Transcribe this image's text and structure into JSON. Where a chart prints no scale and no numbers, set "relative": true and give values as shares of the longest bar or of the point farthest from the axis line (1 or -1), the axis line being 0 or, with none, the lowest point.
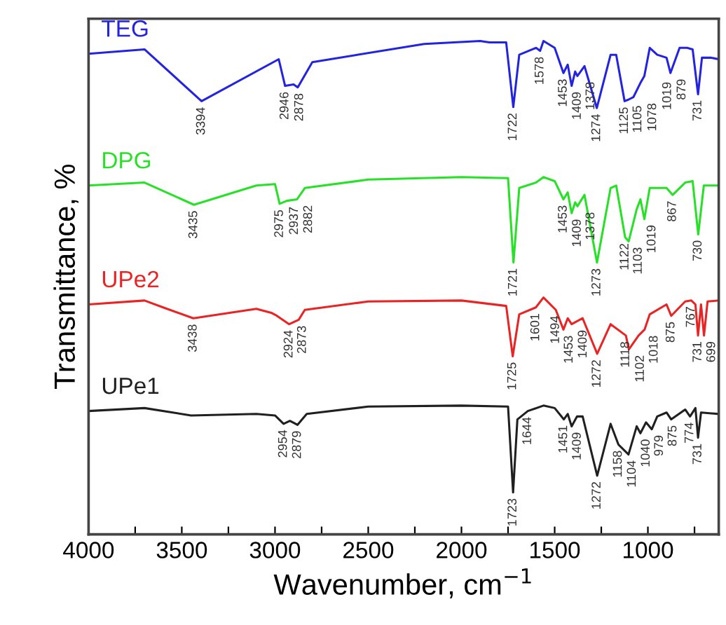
{
  "chart_data": {
    "type": "line",
    "relative": true,
    "xlabel": "Wavenumber, cm$^{−1}$",
    "ylabel": "Transmittance, %",
    "xlim": [
      4000,
      620
    ],
    "xticks": [
      4000,
      {
        "value": 3750,
        "label": null
      },
      3500,
      {
        "value": 3250,
        "label": null
      },
      3000,
      {
        "value": 2750,
        "label": null
      },
      2500,
      {
        "value": 2250,
        "label": null
      },
      2000,
      {
        "value": 1750,
        "label": null
      },
      1500,
      {
        "value": 1250,
        "label": null
      },
      1000,
      {
        "value": 750,
        "label": null
      }
    ],
    "grid": false,
    "legend": false,
    "marker": "none",
    "line_style": "solid",
    "series": [
      {
        "name": "TEG",
        "color": "#2424e0",
        "x": [
          4000,
          3700,
          3394,
          2980,
          2946,
          2900,
          2878,
          2800,
          2200,
          1900,
          1850,
          1760,
          1722,
          1690,
          1600,
          1578,
          1560,
          1500,
          1453,
          1430,
          1409,
          1390,
          1378,
          1340,
          1274,
          1200,
          1170,
          1125,
          1105,
          1078,
          1040,
          1019,
          990,
          950,
          900,
          879,
          830,
          790,
          760,
          731,
          710,
          660,
          620
        ],
        "values": [
          0.974,
          0.983,
          0.878,
          0.963,
          0.909,
          0.912,
          0.906,
          0.957,
          0.994,
          1.0,
          0.997,
          0.997,
          0.866,
          0.972,
          0.986,
          0.98,
          1.0,
          0.986,
          0.935,
          0.952,
          0.909,
          0.938,
          0.929,
          0.949,
          0.864,
          0.972,
          0.972,
          0.878,
          0.881,
          0.886,
          0.915,
          0.929,
          0.986,
          0.972,
          0.966,
          0.935,
          0.986,
          0.986,
          0.983,
          0.892,
          0.966,
          0.966,
          0.963
        ]
      },
      {
        "name": "DPG",
        "color": "#28e028",
        "x": [
          4000,
          3700,
          3435,
          3100,
          3000,
          2975,
          2937,
          2882,
          2840,
          2500,
          2000,
          1750,
          1721,
          1690,
          1600,
          1560,
          1500,
          1453,
          1430,
          1409,
          1390,
          1378,
          1340,
          1273,
          1200,
          1170,
          1122,
          1103,
          1060,
          1040,
          1019,
          990,
          900,
          867,
          800,
          760,
          730,
          700,
          620
        ],
        "values": [
          0.707,
          0.713,
          0.668,
          0.707,
          0.71,
          0.67,
          0.676,
          0.679,
          0.702,
          0.719,
          0.724,
          0.722,
          0.551,
          0.702,
          0.713,
          0.724,
          0.716,
          0.679,
          0.693,
          0.651,
          0.673,
          0.665,
          0.688,
          0.551,
          0.702,
          0.707,
          0.602,
          0.594,
          0.659,
          0.679,
          0.639,
          0.702,
          0.702,
          0.688,
          0.713,
          0.716,
          0.608,
          0.707,
          0.707
        ]
      },
      {
        "name": "UPe2",
        "color": "#e82424",
        "x": [
          4000,
          3700,
          3600,
          3438,
          3100,
          3020,
          2990,
          2924,
          2873,
          2840,
          2500,
          2000,
          1760,
          1725,
          1690,
          1601,
          1560,
          1494,
          1453,
          1430,
          1409,
          1350,
          1272,
          1200,
          1118,
          1102,
          1050,
          1018,
          990,
          900,
          875,
          800,
          767,
          745,
          731,
          715,
          699,
          680,
          620
        ],
        "values": [
          0.466,
          0.474,
          0.46,
          0.438,
          0.457,
          0.449,
          0.443,
          0.426,
          0.435,
          0.455,
          0.472,
          0.474,
          0.463,
          0.361,
          0.446,
          0.46,
          0.48,
          0.455,
          0.415,
          0.438,
          0.426,
          0.438,
          0.366,
          0.426,
          0.403,
          0.375,
          0.403,
          0.415,
          0.446,
          0.466,
          0.443,
          0.472,
          0.474,
          0.466,
          0.403,
          0.466,
          0.403,
          0.472,
          0.474
        ]
      },
      {
        "name": "UPe1",
        "color": "#202020",
        "x": [
          4000,
          3700,
          3450,
          3100,
          3000,
          2954,
          2920,
          2879,
          2830,
          2500,
          2000,
          1750,
          1723,
          1700,
          1644,
          1560,
          1500,
          1451,
          1430,
          1409,
          1380,
          1350,
          1272,
          1200,
          1158,
          1104,
          1060,
          1040,
          1010,
          979,
          950,
          900,
          875,
          800,
          774,
          745,
          731,
          715,
          620
        ],
        "values": [
          0.25,
          0.256,
          0.241,
          0.244,
          0.241,
          0.224,
          0.23,
          0.222,
          0.244,
          0.259,
          0.261,
          0.259,
          0.085,
          0.233,
          0.25,
          0.261,
          0.256,
          0.233,
          0.244,
          0.219,
          0.239,
          0.239,
          0.119,
          0.224,
          0.182,
          0.162,
          0.219,
          0.205,
          0.227,
          0.213,
          0.239,
          0.247,
          0.233,
          0.253,
          0.239,
          0.256,
          0.196,
          0.247,
          0.244
        ]
      }
    ],
    "annotations": [
      {
        "text": "3394",
        "x": 3394,
        "y": 0.878
      },
      {
        "text": "2946",
        "x": 2946,
        "y": 0.909
      },
      {
        "text": "2878",
        "x": 2878,
        "y": 0.906
      },
      {
        "text": "1722",
        "x": 1722,
        "y": 0.866
      },
      {
        "text": "1578",
        "x": 1578,
        "y": 0.98
      },
      {
        "text": "1453",
        "x": 1453,
        "y": 0.935
      },
      {
        "text": "1409",
        "x": 1409,
        "y": 0.909
      },
      {
        "text": "1378",
        "x": 1378,
        "y": 0.929
      },
      {
        "text": "1274",
        "x": 1274,
        "y": 0.864
      },
      {
        "text": "1125",
        "x": 1125,
        "y": 0.878
      },
      {
        "text": "1105",
        "x": 1105,
        "y": 0.881
      },
      {
        "text": "1078",
        "x": 1078,
        "y": 0.886
      },
      {
        "text": "1019",
        "x": 1019,
        "y": 0.929
      },
      {
        "text": "879",
        "x": 879,
        "y": 0.935
      },
      {
        "text": "731",
        "x": 731,
        "y": 0.892
      },
      {
        "text": "3435",
        "x": 3435,
        "y": 0.668
      },
      {
        "text": "2975",
        "x": 2975,
        "y": 0.67
      },
      {
        "text": "2937",
        "x": 2937,
        "y": 0.676
      },
      {
        "text": "2882",
        "x": 2882,
        "y": 0.679
      },
      {
        "text": "1721",
        "x": 1721,
        "y": 0.551
      },
      {
        "text": "1453",
        "x": 1453,
        "y": 0.679
      },
      {
        "text": "1409",
        "x": 1409,
        "y": 0.651
      },
      {
        "text": "1378",
        "x": 1378,
        "y": 0.665
      },
      {
        "text": "1273",
        "x": 1273,
        "y": 0.551
      },
      {
        "text": "1122",
        "x": 1122,
        "y": 0.602
      },
      {
        "text": "1103",
        "x": 1103,
        "y": 0.594
      },
      {
        "text": "1019",
        "x": 1019,
        "y": 0.639
      },
      {
        "text": "867",
        "x": 867,
        "y": 0.688
      },
      {
        "text": "730",
        "x": 730,
        "y": 0.608
      },
      {
        "text": "3438",
        "x": 3438,
        "y": 0.438
      },
      {
        "text": "2924",
        "x": 2924,
        "y": 0.426
      },
      {
        "text": "2873",
        "x": 2873,
        "y": 0.435
      },
      {
        "text": "1725",
        "x": 1725,
        "y": 0.361
      },
      {
        "text": "1601",
        "x": 1601,
        "y": 0.46
      },
      {
        "text": "1494",
        "x": 1494,
        "y": 0.455
      },
      {
        "text": "1453",
        "x": 1453,
        "y": 0.415
      },
      {
        "text": "1409",
        "x": 1409,
        "y": 0.426
      },
      {
        "text": "1272",
        "x": 1272,
        "y": 0.366
      },
      {
        "text": "1118",
        "x": 1118,
        "y": 0.403
      },
      {
        "text": "1102",
        "x": 1102,
        "y": 0.375
      },
      {
        "text": "1018",
        "x": 1018,
        "y": 0.415
      },
      {
        "text": "875",
        "x": 875,
        "y": 0.443
      },
      {
        "text": "767",
        "x": 767,
        "y": 0.474
      },
      {
        "text": "731",
        "x": 731,
        "y": 0.403
      },
      {
        "text": "699",
        "x": 699,
        "y": 0.403
      },
      {
        "text": "2954",
        "x": 2954,
        "y": 0.224
      },
      {
        "text": "2879",
        "x": 2879,
        "y": 0.222
      },
      {
        "text": "1723",
        "x": 1723,
        "y": 0.085
      },
      {
        "text": "1644",
        "x": 1644,
        "y": 0.25
      },
      {
        "text": "1451",
        "x": 1451,
        "y": 0.233
      },
      {
        "text": "1409",
        "x": 1409,
        "y": 0.219
      },
      {
        "text": "1272",
        "x": 1272,
        "y": 0.119
      },
      {
        "text": "1158",
        "x": 1158,
        "y": 0.182
      },
      {
        "text": "1104",
        "x": 1104,
        "y": 0.162
      },
      {
        "text": "1040",
        "x": 1040,
        "y": 0.205
      },
      {
        "text": "979",
        "x": 979,
        "y": 0.213
      },
      {
        "text": "875",
        "x": 875,
        "y": 0.233
      },
      {
        "text": "774",
        "x": 774,
        "y": 0.239
      },
      {
        "text": "731",
        "x": 731,
        "y": 0.196
      }
    ]
  }
}
